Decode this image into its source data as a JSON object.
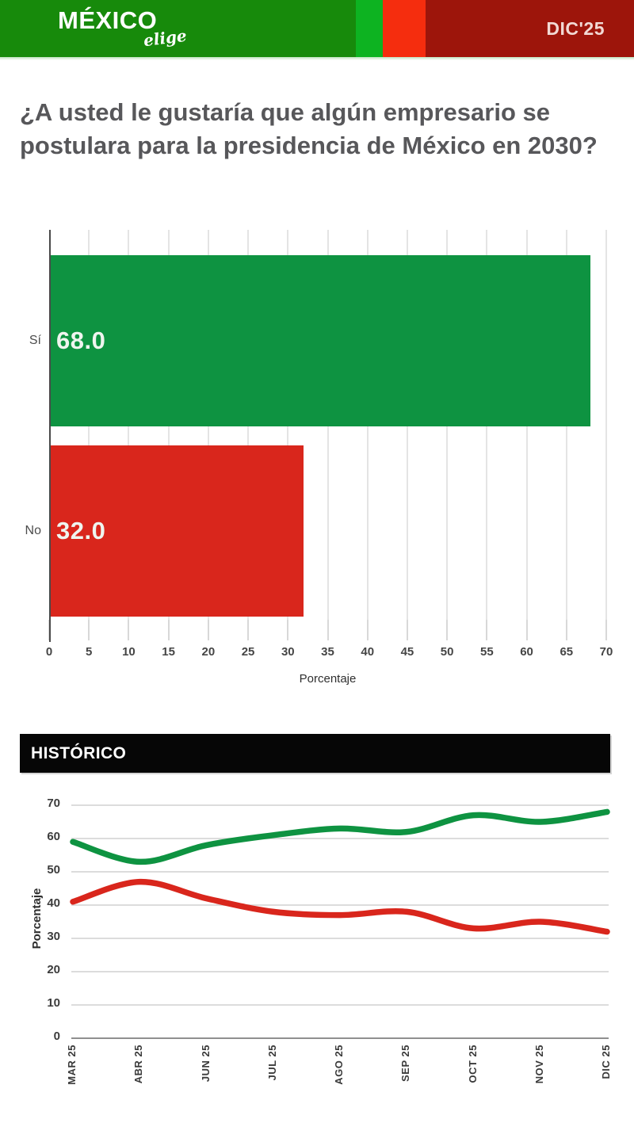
{
  "header": {
    "logo_main": "MÉXICO",
    "logo_sub": "elige",
    "edition": "DIC'25",
    "colors": {
      "dark_green": "#178a0b",
      "bright_green": "#0db321",
      "bright_red": "#f52d0e",
      "dark_red": "#9d150b",
      "edition_text": "#f2d9d4"
    }
  },
  "question": "¿A usted le gustaría que algún empresario se postulara para la presidencia de México en 2030?",
  "chart_data": [
    {
      "type": "bar",
      "orientation": "horizontal",
      "categories": [
        "Sí",
        "No"
      ],
      "values": [
        68.0,
        32.0
      ],
      "value_labels": [
        "68.0",
        "32.0"
      ],
      "bar_colors": [
        "#0e9341",
        "#d9261c"
      ],
      "value_text_color": "#eff5ef",
      "xlabel": "Porcentaje",
      "xlim": [
        0,
        70
      ],
      "xticks": [
        0,
        5,
        10,
        15,
        20,
        25,
        30,
        35,
        40,
        45,
        50,
        55,
        60,
        65,
        70
      ],
      "grid": "vertical"
    },
    {
      "type": "line",
      "title": "HISTÓRICO",
      "x": [
        "MAR 25",
        "ABR 25",
        "JUN 25",
        "JUL 25",
        "AGO 25",
        "SEP 25",
        "OCT 25",
        "NOV 25",
        "DIC 25"
      ],
      "series": [
        {
          "name": "Sí",
          "color": "#0e9341",
          "values": [
            59,
            53,
            58,
            61,
            63,
            62,
            67,
            65,
            68
          ]
        },
        {
          "name": "No",
          "color": "#d9261c",
          "values": [
            41,
            47,
            42,
            38,
            37,
            38,
            33,
            35,
            32
          ]
        }
      ],
      "ylabel": "Porcentaje",
      "ylim": [
        0,
        70
      ],
      "yticks": [
        0,
        10,
        20,
        30,
        40,
        50,
        60,
        70
      ],
      "grid": "horizontal",
      "legend": "none"
    }
  ]
}
